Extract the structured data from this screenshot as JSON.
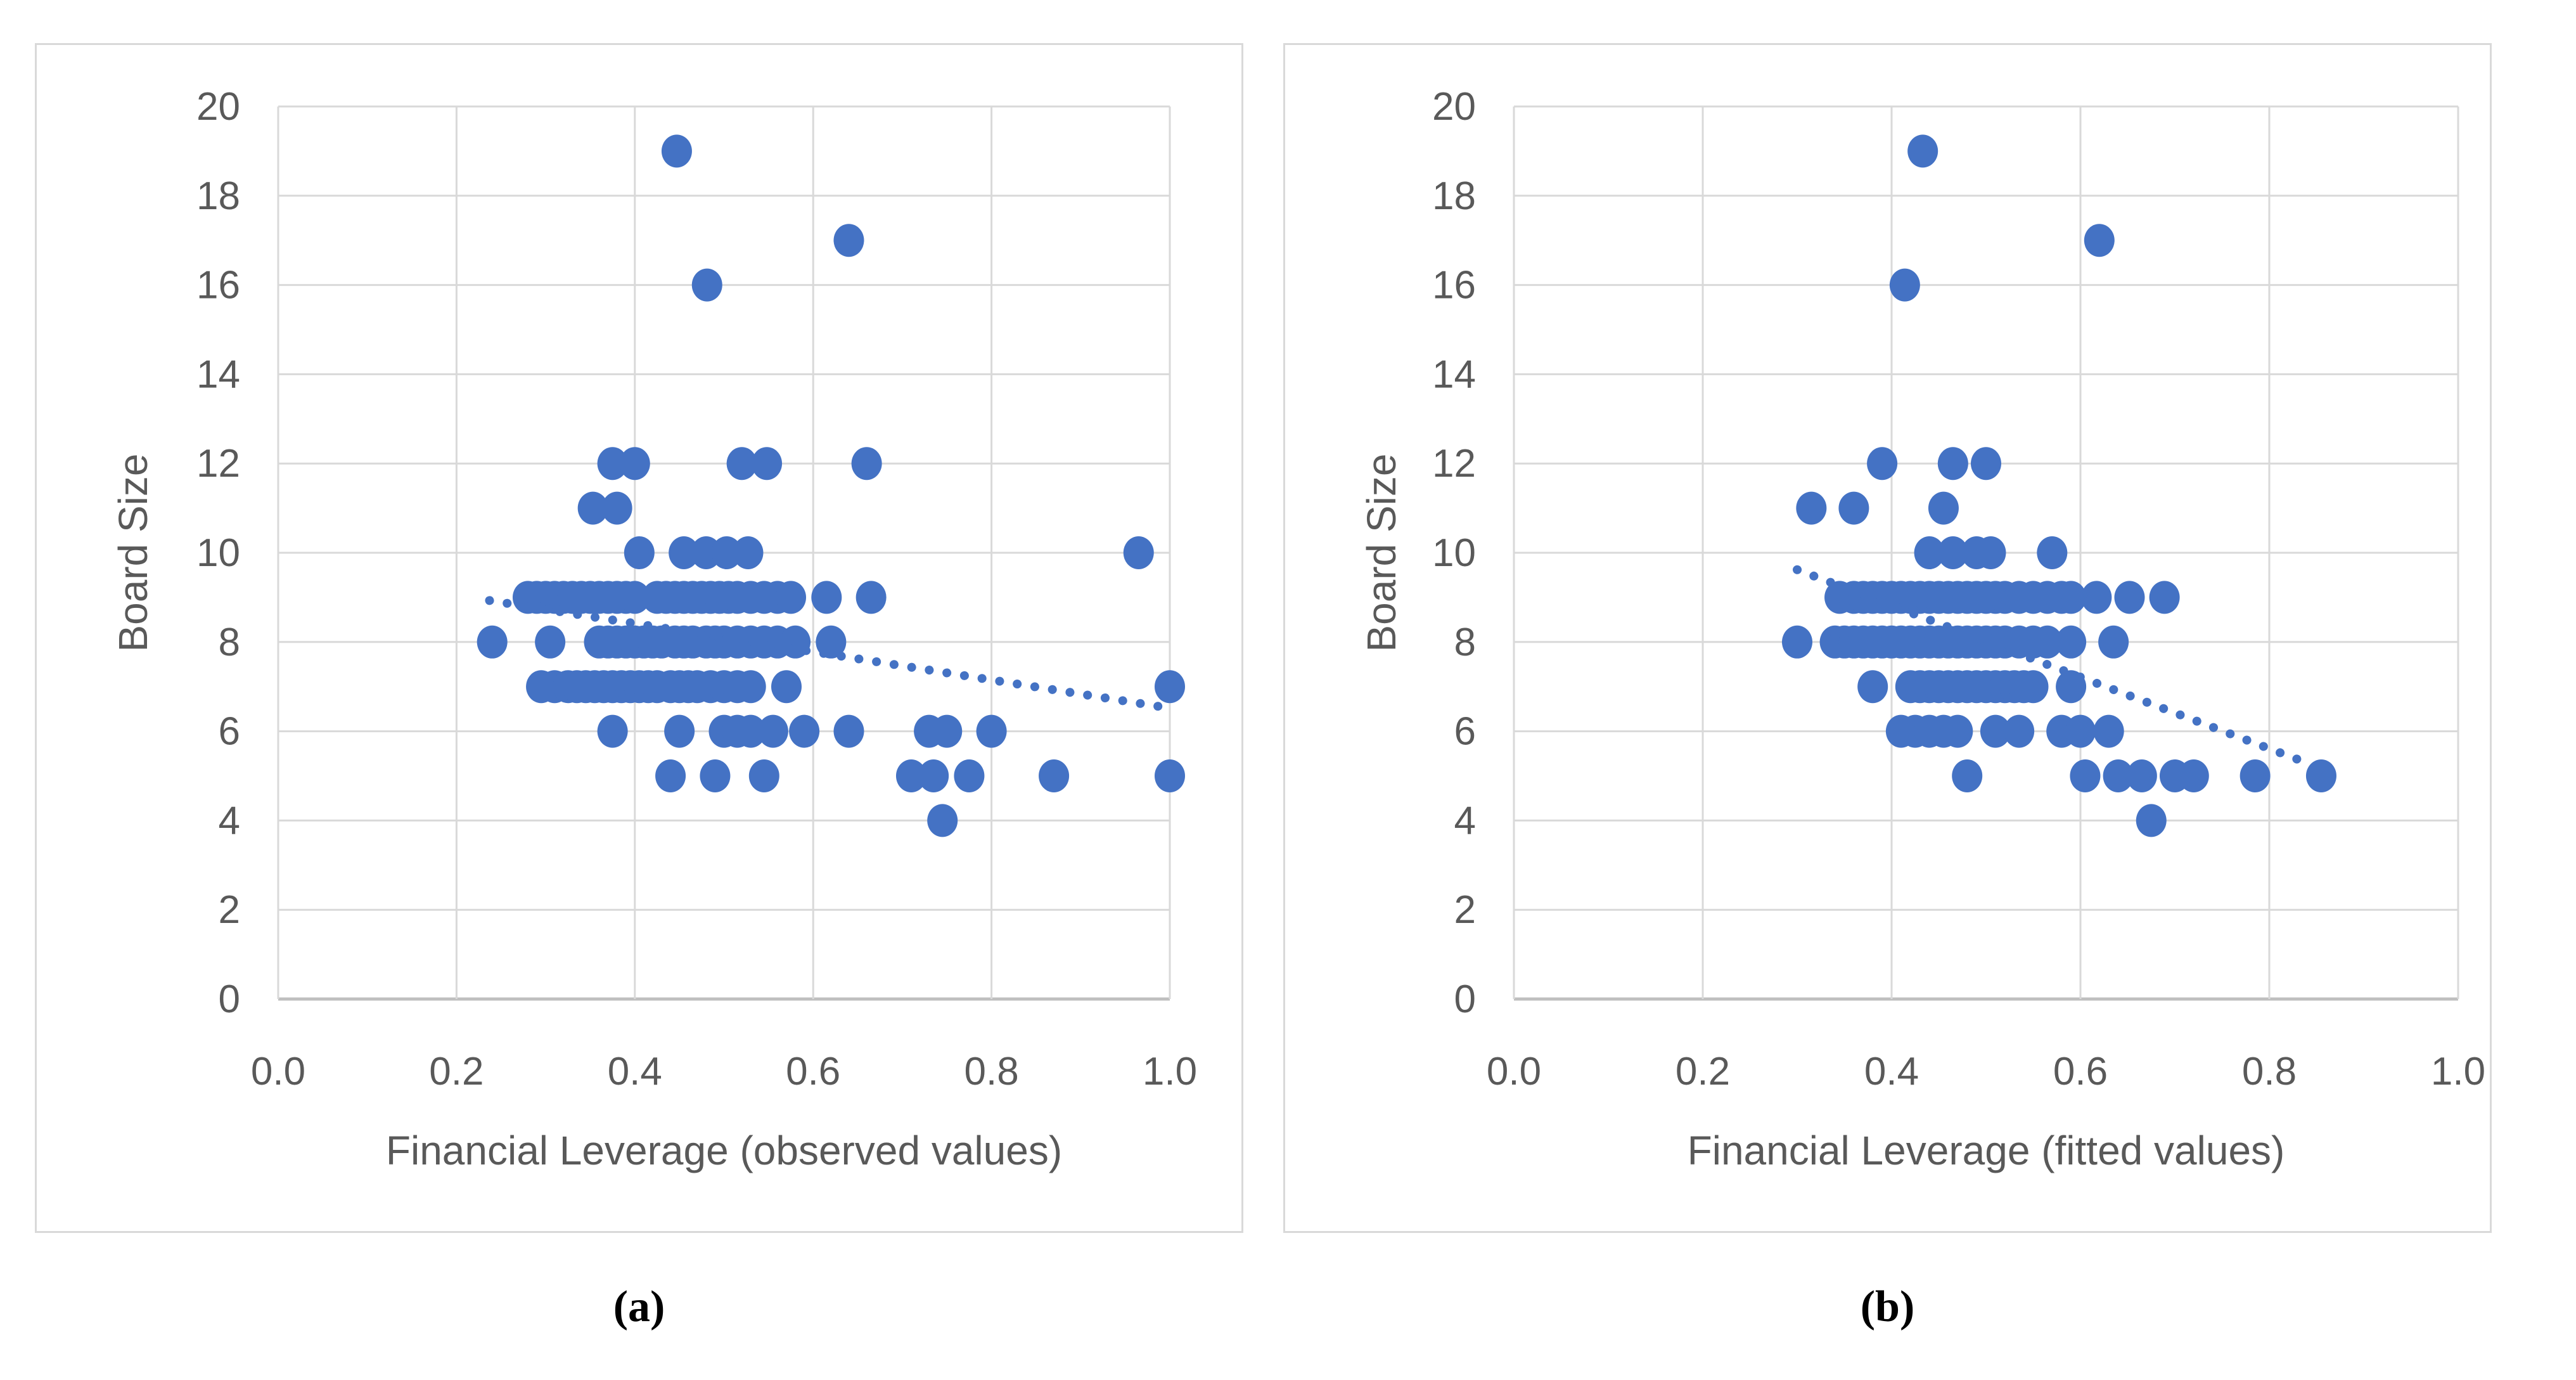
{
  "captions": {
    "a": "(a)",
    "b": "(b)"
  },
  "colors": {
    "marker": "#4472C4",
    "trendline": "#4472C4",
    "gridline": "#D9D9D9",
    "axis_line": "#BFBFBF",
    "tick_text": "#595959",
    "panel_border": "#D9D9D9"
  },
  "chart_data": [
    {
      "type": "scatter",
      "xlabel": "Financial Leverage (observed values)",
      "ylabel": "Board Size",
      "xlim": [
        0.0,
        1.0
      ],
      "ylim": [
        0,
        20
      ],
      "grid": true,
      "legend": "none",
      "xticks": [
        "0.0",
        "0.2",
        "0.4",
        "0.6",
        "0.8",
        "1.0"
      ],
      "yticks": [
        "0",
        "2",
        "4",
        "6",
        "8",
        "10",
        "12",
        "14",
        "16",
        "18",
        "20"
      ],
      "trendline": {
        "style": "dotted",
        "x1": 0.237,
        "y1": 8.93,
        "x2": 0.99,
        "y2": 6.55
      },
      "points": [
        [
          0.447,
          19
        ],
        [
          0.64,
          17
        ],
        [
          0.481,
          16
        ],
        [
          0.375,
          12
        ],
        [
          0.4,
          12
        ],
        [
          0.52,
          12
        ],
        [
          0.548,
          12
        ],
        [
          0.66,
          12
        ],
        [
          0.353,
          11
        ],
        [
          0.38,
          11
        ],
        [
          0.405,
          10
        ],
        [
          0.455,
          10
        ],
        [
          0.48,
          10
        ],
        [
          0.503,
          10
        ],
        [
          0.527,
          10
        ],
        [
          0.965,
          10
        ],
        [
          0.28,
          9
        ],
        [
          0.29,
          9
        ],
        [
          0.3,
          9
        ],
        [
          0.31,
          9
        ],
        [
          0.32,
          9
        ],
        [
          0.33,
          9
        ],
        [
          0.34,
          9
        ],
        [
          0.35,
          9
        ],
        [
          0.36,
          9
        ],
        [
          0.37,
          9
        ],
        [
          0.38,
          9
        ],
        [
          0.39,
          9
        ],
        [
          0.4,
          9
        ],
        [
          0.425,
          9
        ],
        [
          0.435,
          9
        ],
        [
          0.445,
          9
        ],
        [
          0.455,
          9
        ],
        [
          0.465,
          9
        ],
        [
          0.475,
          9
        ],
        [
          0.485,
          9
        ],
        [
          0.495,
          9
        ],
        [
          0.505,
          9
        ],
        [
          0.515,
          9
        ],
        [
          0.53,
          9
        ],
        [
          0.545,
          9
        ],
        [
          0.56,
          9
        ],
        [
          0.575,
          9
        ],
        [
          0.615,
          9
        ],
        [
          0.665,
          9
        ],
        [
          0.24,
          8
        ],
        [
          0.305,
          8
        ],
        [
          0.36,
          8
        ],
        [
          0.37,
          8
        ],
        [
          0.38,
          8
        ],
        [
          0.39,
          8
        ],
        [
          0.4,
          8
        ],
        [
          0.41,
          8
        ],
        [
          0.42,
          8
        ],
        [
          0.43,
          8
        ],
        [
          0.445,
          8
        ],
        [
          0.455,
          8
        ],
        [
          0.465,
          8
        ],
        [
          0.48,
          8
        ],
        [
          0.49,
          8
        ],
        [
          0.5,
          8
        ],
        [
          0.515,
          8
        ],
        [
          0.53,
          8
        ],
        [
          0.545,
          8
        ],
        [
          0.56,
          8
        ],
        [
          0.58,
          8
        ],
        [
          0.62,
          8
        ],
        [
          0.295,
          7
        ],
        [
          0.31,
          7
        ],
        [
          0.325,
          7
        ],
        [
          0.335,
          7
        ],
        [
          0.345,
          7
        ],
        [
          0.355,
          7
        ],
        [
          0.365,
          7
        ],
        [
          0.375,
          7
        ],
        [
          0.385,
          7
        ],
        [
          0.395,
          7
        ],
        [
          0.405,
          7
        ],
        [
          0.415,
          7
        ],
        [
          0.425,
          7
        ],
        [
          0.44,
          7
        ],
        [
          0.45,
          7
        ],
        [
          0.46,
          7
        ],
        [
          0.47,
          7
        ],
        [
          0.485,
          7
        ],
        [
          0.5,
          7
        ],
        [
          0.515,
          7
        ],
        [
          0.53,
          7
        ],
        [
          0.57,
          7
        ],
        [
          1.0,
          7
        ],
        [
          0.375,
          6
        ],
        [
          0.45,
          6
        ],
        [
          0.5,
          6
        ],
        [
          0.515,
          6
        ],
        [
          0.53,
          6
        ],
        [
          0.555,
          6
        ],
        [
          0.59,
          6
        ],
        [
          0.64,
          6
        ],
        [
          0.73,
          6
        ],
        [
          0.75,
          6
        ],
        [
          0.8,
          6
        ],
        [
          0.44,
          5
        ],
        [
          0.49,
          5
        ],
        [
          0.545,
          5
        ],
        [
          0.71,
          5
        ],
        [
          0.735,
          5
        ],
        [
          0.775,
          5
        ],
        [
          0.87,
          5
        ],
        [
          1.0,
          5
        ],
        [
          0.745,
          4
        ]
      ]
    },
    {
      "type": "scatter",
      "xlabel": "Financial Leverage (fitted values)",
      "ylabel": "Board Size",
      "xlim": [
        0.0,
        1.0
      ],
      "ylim": [
        0,
        20
      ],
      "grid": true,
      "legend": "none",
      "xticks": [
        "0.0",
        "0.2",
        "0.4",
        "0.6",
        "0.8",
        "1.0"
      ],
      "yticks": [
        "0",
        "2",
        "4",
        "6",
        "8",
        "10",
        "12",
        "14",
        "16",
        "18",
        "20"
      ],
      "trendline": {
        "style": "dotted",
        "x1": 0.3,
        "y1": 9.62,
        "x2": 0.845,
        "y2": 5.25
      },
      "points": [
        [
          0.433,
          19
        ],
        [
          0.62,
          17
        ],
        [
          0.414,
          16
        ],
        [
          0.39,
          12
        ],
        [
          0.465,
          12
        ],
        [
          0.5,
          12
        ],
        [
          0.315,
          11
        ],
        [
          0.36,
          11
        ],
        [
          0.455,
          11
        ],
        [
          0.44,
          10
        ],
        [
          0.465,
          10
        ],
        [
          0.49,
          10
        ],
        [
          0.505,
          10
        ],
        [
          0.57,
          10
        ],
        [
          0.345,
          9
        ],
        [
          0.36,
          9
        ],
        [
          0.37,
          9
        ],
        [
          0.38,
          9
        ],
        [
          0.39,
          9
        ],
        [
          0.4,
          9
        ],
        [
          0.41,
          9
        ],
        [
          0.42,
          9
        ],
        [
          0.43,
          9
        ],
        [
          0.44,
          9
        ],
        [
          0.45,
          9
        ],
        [
          0.46,
          9
        ],
        [
          0.47,
          9
        ],
        [
          0.48,
          9
        ],
        [
          0.49,
          9
        ],
        [
          0.5,
          9
        ],
        [
          0.51,
          9
        ],
        [
          0.52,
          9
        ],
        [
          0.535,
          9
        ],
        [
          0.55,
          9
        ],
        [
          0.565,
          9
        ],
        [
          0.58,
          9
        ],
        [
          0.59,
          9
        ],
        [
          0.617,
          9
        ],
        [
          0.652,
          9
        ],
        [
          0.689,
          9
        ],
        [
          0.3,
          8
        ],
        [
          0.34,
          8
        ],
        [
          0.35,
          8
        ],
        [
          0.36,
          8
        ],
        [
          0.37,
          8
        ],
        [
          0.38,
          8
        ],
        [
          0.39,
          8
        ],
        [
          0.4,
          8
        ],
        [
          0.41,
          8
        ],
        [
          0.42,
          8
        ],
        [
          0.43,
          8
        ],
        [
          0.44,
          8
        ],
        [
          0.45,
          8
        ],
        [
          0.46,
          8
        ],
        [
          0.47,
          8
        ],
        [
          0.48,
          8
        ],
        [
          0.49,
          8
        ],
        [
          0.5,
          8
        ],
        [
          0.51,
          8
        ],
        [
          0.52,
          8
        ],
        [
          0.535,
          8
        ],
        [
          0.55,
          8
        ],
        [
          0.565,
          8
        ],
        [
          0.59,
          8
        ],
        [
          0.635,
          8
        ],
        [
          0.38,
          7
        ],
        [
          0.42,
          7
        ],
        [
          0.43,
          7
        ],
        [
          0.44,
          7
        ],
        [
          0.45,
          7
        ],
        [
          0.46,
          7
        ],
        [
          0.47,
          7
        ],
        [
          0.48,
          7
        ],
        [
          0.49,
          7
        ],
        [
          0.5,
          7
        ],
        [
          0.51,
          7
        ],
        [
          0.52,
          7
        ],
        [
          0.53,
          7
        ],
        [
          0.54,
          7
        ],
        [
          0.55,
          7
        ],
        [
          0.59,
          7
        ],
        [
          0.41,
          6
        ],
        [
          0.425,
          6
        ],
        [
          0.44,
          6
        ],
        [
          0.455,
          6
        ],
        [
          0.47,
          6
        ],
        [
          0.51,
          6
        ],
        [
          0.535,
          6
        ],
        [
          0.58,
          6
        ],
        [
          0.6,
          6
        ],
        [
          0.63,
          6
        ],
        [
          0.48,
          5
        ],
        [
          0.605,
          5
        ],
        [
          0.64,
          5
        ],
        [
          0.665,
          5
        ],
        [
          0.7,
          5
        ],
        [
          0.72,
          5
        ],
        [
          0.785,
          5
        ],
        [
          0.855,
          5
        ],
        [
          0.675,
          4
        ]
      ]
    }
  ]
}
